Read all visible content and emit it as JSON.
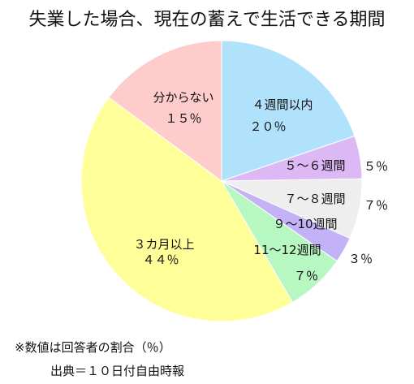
{
  "chart_data": {
    "type": "pie",
    "title": "失業した場合、現在の蓄えで生活できる期間",
    "slices": [
      {
        "label": "４週間以内",
        "value": 20,
        "value_label": "２０％",
        "color": "#b0e2fb"
      },
      {
        "label": "５～６週間",
        "value": 5,
        "value_label": "５％",
        "color": "#dcb8f5"
      },
      {
        "label": "７～８週間",
        "value": 7,
        "value_label": "７％",
        "color": "#eeeeee"
      },
      {
        "label": "９～10週間",
        "value": 3,
        "value_label": "３％",
        "color": "#c4b2f7"
      },
      {
        "label": "11～12週間",
        "value": 7,
        "value_label": "７％",
        "color": "#b6f7c2"
      },
      {
        "label": "３カ月以上",
        "value": 44,
        "value_label": "４４％",
        "color": "#ffff99"
      },
      {
        "label": "分からない",
        "value": 15,
        "value_label": "１５％",
        "color": "#ffcccc"
      }
    ]
  },
  "footer": {
    "note": "※数値は回答者の割合（％）",
    "source": "出典＝１０日付自由時報"
  }
}
